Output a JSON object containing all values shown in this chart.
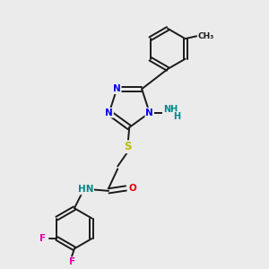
{
  "bg_color": "#ebebeb",
  "bond_color": "#1a1a1a",
  "atom_colors": {
    "N": "#0000ee",
    "O": "#ee0000",
    "S": "#bbbb00",
    "F": "#dd00aa",
    "C": "#1a1a1a",
    "H": "#008888"
  },
  "figsize": [
    3.0,
    3.0
  ],
  "dpi": 100,
  "xlim": [
    0,
    10
  ],
  "ylim": [
    0,
    10
  ]
}
